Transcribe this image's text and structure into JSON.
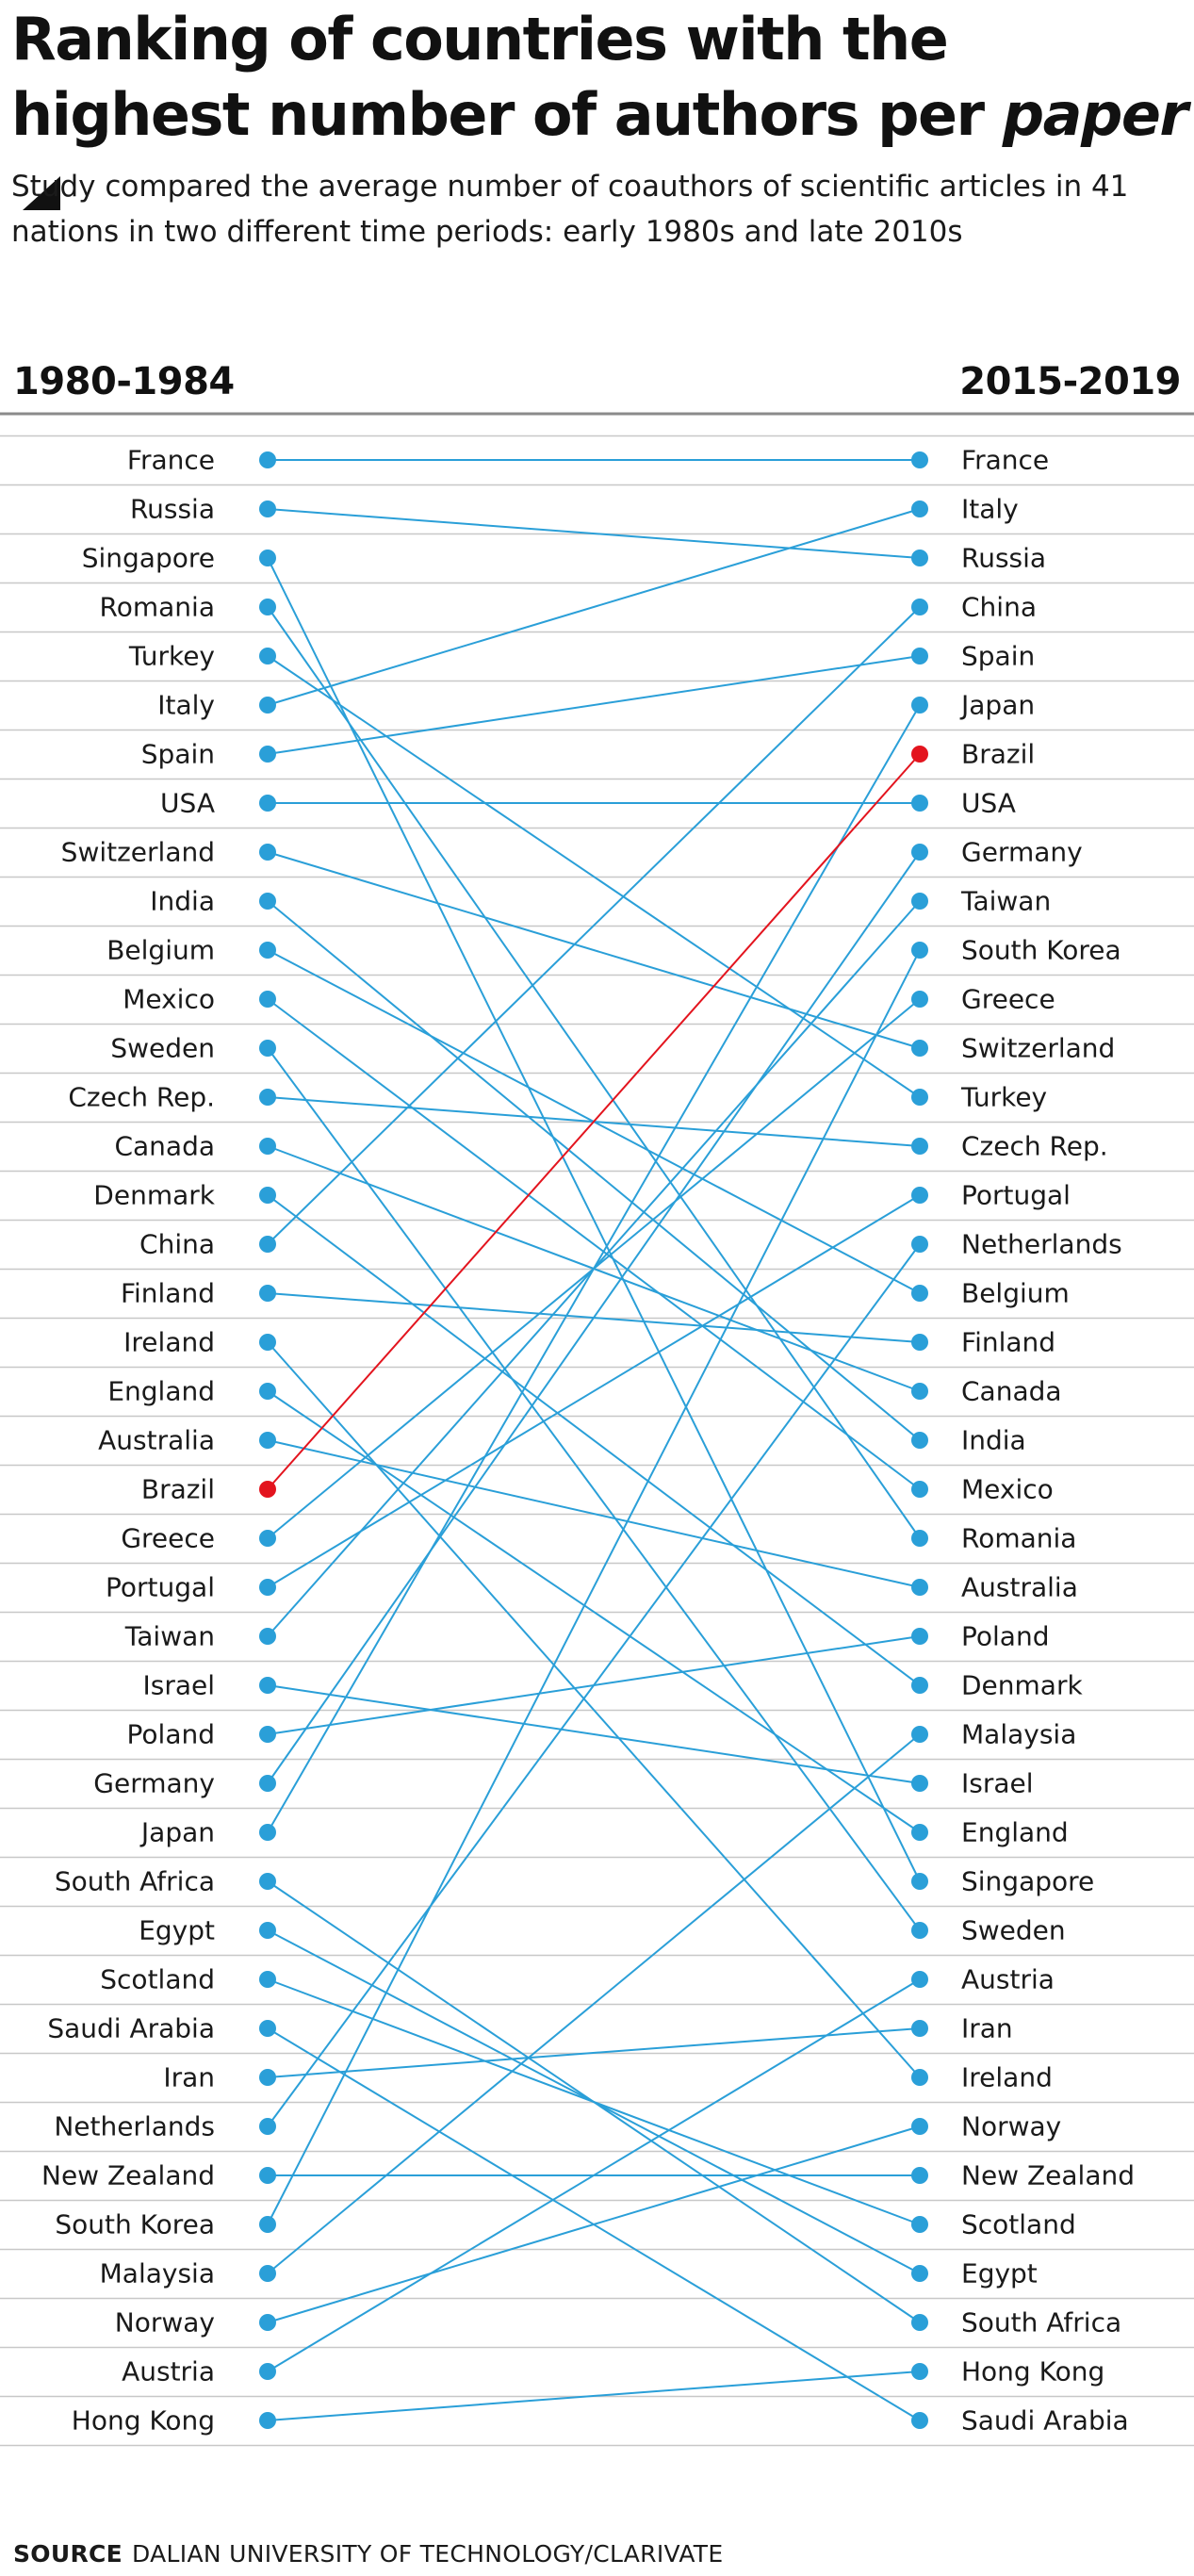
{
  "header": {
    "title_main": "Ranking of countries with the highest number of authors per ",
    "title_tail": "paper",
    "subtitle": "Study compared the average number of coauthors of scientific articles in 41 nations in two different time periods: early 1980s and late 2010s"
  },
  "columns": {
    "left": "1980-1984",
    "right": "2015-2019"
  },
  "source": {
    "label": "SOURCE",
    "text": "DALIAN UNIVERSITY OF TECHNOLOGY/CLARIVATE"
  },
  "colors": {
    "line": "#2a9fd8",
    "highlight": "#e3141e",
    "rule": "#c8c8c8",
    "axis": "#8a8a8a"
  },
  "chart_data": {
    "type": "slope",
    "highlight": "Brazil",
    "left_rank": [
      "France",
      "Russia",
      "Singapore",
      "Romania",
      "Turkey",
      "Italy",
      "Spain",
      "USA",
      "Switzerland",
      "India",
      "Belgium",
      "Mexico",
      "Sweden",
      "Czech Rep.",
      "Canada",
      "Denmark",
      "China",
      "Finland",
      "Ireland",
      "England",
      "Australia",
      "Brazil",
      "Greece",
      "Portugal",
      "Taiwan",
      "Israel",
      "Poland",
      "Germany",
      "Japan",
      "South Africa",
      "Egypt",
      "Scotland",
      "Saudi Arabia",
      "Iran",
      "Netherlands",
      "New Zealand",
      "South Korea",
      "Malaysia",
      "Norway",
      "Austria",
      "Hong Kong"
    ],
    "right_rank": [
      "France",
      "Italy",
      "Russia",
      "China",
      "Spain",
      "Japan",
      "Brazil",
      "USA",
      "Germany",
      "Taiwan",
      "South Korea",
      "Greece",
      "Switzerland",
      "Turkey",
      "Czech Rep.",
      "Portugal",
      "Netherlands",
      "Belgium",
      "Finland",
      "Canada",
      "India",
      "Mexico",
      "Romania",
      "Australia",
      "Poland",
      "Denmark",
      "Malaysia",
      "Israel",
      "England",
      "Singapore",
      "Sweden",
      "Austria",
      "Iran",
      "Ireland",
      "Norway",
      "New Zealand",
      "Scotland",
      "Egypt",
      "South Africa",
      "Hong Kong",
      "Saudi Arabia"
    ]
  }
}
